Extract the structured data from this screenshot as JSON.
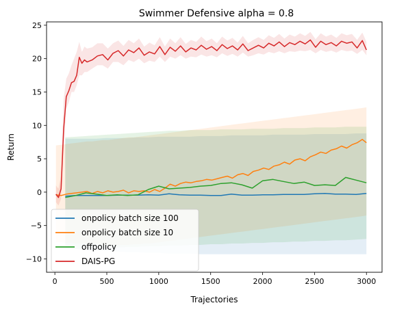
{
  "chart_data": {
    "type": "line",
    "title": "Swimmer Defensive alpha = 0.8",
    "xlabel": "Trajectories",
    "ylabel": "Return",
    "xlim": [
      -80,
      3150
    ],
    "ylim": [
      -12,
      25.5
    ],
    "xticks": [
      0,
      500,
      1000,
      1500,
      2000,
      2500,
      3000
    ],
    "yticks": [
      -10,
      -5,
      0,
      5,
      10,
      15,
      20,
      25
    ],
    "xtick_labels": [
      "0",
      "500",
      "1000",
      "1500",
      "2000",
      "2500",
      "3000"
    ],
    "ytick_labels": [
      "−10",
      "−5",
      "0",
      "5",
      "10",
      "15",
      "20",
      "25"
    ],
    "grid": false,
    "legend_position": "lower-left",
    "series": [
      {
        "name": "onpolicy batch size 100",
        "color": "#1f77b4",
        "x": [
          100,
          200,
          300,
          400,
          500,
          600,
          700,
          800,
          900,
          1000,
          1100,
          1200,
          1300,
          1400,
          1500,
          1600,
          1700,
          1800,
          1900,
          2000,
          2100,
          2200,
          2300,
          2400,
          2500,
          2600,
          2700,
          2800,
          2900,
          3000
        ],
        "y": [
          -0.6,
          -0.5,
          -0.5,
          -0.5,
          -0.5,
          -0.45,
          -0.45,
          -0.45,
          -0.4,
          -0.45,
          -0.25,
          -0.4,
          -0.45,
          -0.45,
          -0.5,
          -0.5,
          -0.3,
          -0.45,
          -0.45,
          -0.4,
          -0.4,
          -0.35,
          -0.35,
          -0.35,
          -0.25,
          -0.2,
          -0.3,
          -0.3,
          -0.35,
          -0.2
        ],
        "band_lower": [
          -8.5,
          -8.5,
          -8.7,
          -8.8,
          -8.8,
          -8.9,
          -9,
          -9,
          -9.1,
          -9.1,
          -9.2,
          -9.2,
          -9.2,
          -9.3,
          -9.3,
          -9.3,
          -9.3,
          -9.3,
          -9.3,
          -9.3,
          -9.3,
          -9.3,
          -9.3,
          -9.3,
          -9.3,
          -9.3,
          -9.3,
          -9.3,
          -9.3,
          -9.3
        ],
        "band_upper": [
          8,
          8,
          8,
          8,
          8.1,
          8.1,
          8.1,
          8.2,
          8.2,
          8.3,
          8.3,
          8.3,
          8.3,
          8.4,
          8.4,
          8.4,
          8.5,
          8.5,
          8.5,
          8.5,
          8.6,
          8.6,
          8.6,
          8.6,
          8.7,
          8.7,
          8.7,
          8.7,
          8.8,
          8.8
        ]
      },
      {
        "name": "onpolicy batch size 10",
        "color": "#ff7f0e",
        "x": [
          10,
          60,
          110,
          160,
          210,
          260,
          310,
          360,
          410,
          460,
          510,
          560,
          610,
          660,
          710,
          760,
          810,
          860,
          910,
          960,
          1010,
          1060,
          1110,
          1160,
          1210,
          1260,
          1310,
          1360,
          1410,
          1460,
          1510,
          1560,
          1610,
          1660,
          1710,
          1760,
          1810,
          1860,
          1910,
          1960,
          2010,
          2060,
          2110,
          2160,
          2210,
          2260,
          2310,
          2360,
          2410,
          2460,
          2510,
          2560,
          2610,
          2660,
          2710,
          2760,
          2810,
          2860,
          2910,
          2960,
          3000
        ],
        "y": [
          -0.4,
          -0.5,
          -0.3,
          -0.2,
          -0.1,
          0,
          0.1,
          -0.2,
          0.1,
          -0.1,
          0.2,
          0,
          0.1,
          0.3,
          -0.1,
          0.2,
          0.1,
          0.2,
          0,
          0.4,
          0.1,
          0.6,
          1.2,
          0.9,
          1.3,
          1.5,
          1.4,
          1.6,
          1.7,
          1.9,
          1.8,
          2.0,
          2.2,
          2.4,
          2.1,
          2.6,
          2.8,
          2.5,
          3.1,
          3.3,
          3.6,
          3.4,
          3.9,
          4.1,
          4.5,
          4.2,
          4.8,
          5.0,
          4.7,
          5.3,
          5.6,
          6.0,
          5.8,
          6.3,
          6.5,
          6.9,
          6.6,
          7.1,
          7.4,
          7.9,
          7.4
        ],
        "band_lower": [
          -7.5,
          -7.5,
          -7.6,
          -7.6,
          -7.7,
          -7.7,
          -7.8,
          -7.8,
          -7.8,
          -7.9,
          -7.9,
          -7.9,
          -7.9,
          -7.9,
          -7.9,
          -7.8,
          -7.8,
          -7.7,
          -7.7,
          -7.6,
          -7.5,
          -7.4,
          -7.3,
          -7.2,
          -7.1,
          -7,
          -6.9,
          -6.8,
          -6.7,
          -6.6,
          -6.5,
          -6.4,
          -6.3,
          -6.2,
          -6.1,
          -6,
          -5.9,
          -5.8,
          -5.7,
          -5.6,
          -5.5,
          -5.4,
          -5.3,
          -5.2,
          -5.1,
          -5,
          -4.9,
          -4.8,
          -4.7,
          -4.6,
          -4.5,
          -4.4,
          -4.3,
          -4.2,
          -4.1,
          -4,
          -3.9,
          -3.8,
          -3.7,
          -3.6,
          -3.5
        ],
        "band_upper": [
          7,
          7.1,
          7.2,
          7.3,
          7.4,
          7.5,
          7.6,
          7.6,
          7.7,
          7.8,
          7.8,
          7.9,
          8,
          8.1,
          8.2,
          8.2,
          8.3,
          8.4,
          8.5,
          8.6,
          8.7,
          8.8,
          8.9,
          9,
          9.1,
          9.2,
          9.3,
          9.4,
          9.5,
          9.6,
          9.7,
          9.8,
          9.9,
          10,
          10.1,
          10.2,
          10.3,
          10.4,
          10.5,
          10.6,
          10.7,
          10.8,
          10.9,
          11,
          11.1,
          11.2,
          11.3,
          11.4,
          11.5,
          11.6,
          11.7,
          11.8,
          11.9,
          12,
          12.1,
          12.2,
          12.3,
          12.4,
          12.5,
          12.6,
          12.7
        ]
      },
      {
        "name": "offpolicy",
        "color": "#2ca02c",
        "x": [
          100,
          200,
          300,
          400,
          500,
          600,
          700,
          800,
          900,
          1000,
          1100,
          1200,
          1300,
          1400,
          1500,
          1600,
          1700,
          1800,
          1900,
          2000,
          2100,
          2200,
          2300,
          2400,
          2500,
          2600,
          2700,
          2800,
          2900,
          3000
        ],
        "y": [
          -0.8,
          -0.5,
          -0.1,
          -0.3,
          -0.5,
          -0.4,
          -0.5,
          -0.4,
          0.4,
          0.9,
          0.5,
          0.6,
          0.7,
          0.9,
          1.0,
          1.3,
          1.4,
          1.1,
          0.6,
          1.7,
          1.9,
          1.6,
          1.3,
          1.5,
          1.0,
          1.1,
          1.0,
          2.2,
          1.8,
          1.4
        ],
        "band_lower": [
          -8.5,
          -8.5,
          -8.4,
          -8.4,
          -8.3,
          -8.3,
          -8.2,
          -8.2,
          -8.1,
          -8.1,
          -8,
          -8,
          -7.9,
          -7.9,
          -7.8,
          -7.8,
          -7.7,
          -7.7,
          -7.6,
          -7.6,
          -7.5,
          -7.5,
          -7.4,
          -7.4,
          -7.3,
          -7.3,
          -7.2,
          -7.2,
          -7.1,
          -7
        ],
        "band_upper": [
          8.2,
          8.3,
          8.4,
          8.5,
          8.6,
          8.7,
          8.8,
          8.9,
          9,
          9.1,
          9.2,
          9.2,
          9.3,
          9.3,
          9.3,
          9.4,
          9.4,
          9.4,
          9.5,
          9.5,
          9.5,
          9.6,
          9.6,
          9.6,
          9.7,
          9.7,
          9.7,
          9.8,
          9.8,
          9.8
        ]
      },
      {
        "name": "DAIS-PG",
        "color": "#d62728",
        "x": [
          10,
          35,
          60,
          85,
          110,
          135,
          160,
          185,
          210,
          235,
          260,
          285,
          310,
          360,
          410,
          460,
          510,
          560,
          610,
          660,
          710,
          760,
          810,
          860,
          910,
          960,
          1010,
          1060,
          1110,
          1160,
          1210,
          1260,
          1310,
          1360,
          1410,
          1460,
          1510,
          1560,
          1610,
          1660,
          1710,
          1760,
          1810,
          1860,
          1910,
          1960,
          2010,
          2060,
          2110,
          2160,
          2210,
          2260,
          2310,
          2360,
          2410,
          2460,
          2510,
          2560,
          2610,
          2660,
          2710,
          2760,
          2810,
          2860,
          2910,
          2960,
          3000
        ],
        "y": [
          -0.3,
          -0.8,
          0.5,
          9.5,
          14.3,
          15.2,
          16.4,
          16.6,
          17.5,
          20.2,
          19.3,
          19.8,
          19.5,
          19.8,
          20.4,
          20.6,
          19.8,
          20.8,
          21.2,
          20.4,
          21.3,
          20.9,
          21.6,
          20.5,
          21.0,
          20.7,
          21.8,
          20.6,
          21.7,
          21.1,
          21.9,
          21.0,
          21.6,
          21.3,
          22.0,
          21.4,
          21.8,
          21.2,
          22.1,
          21.5,
          21.9,
          21.3,
          22.2,
          21.2,
          21.6,
          22.0,
          21.6,
          22.3,
          21.9,
          22.5,
          21.8,
          22.4,
          22.1,
          22.6,
          22.2,
          22.8,
          21.7,
          22.6,
          22.1,
          22.4,
          21.9,
          22.6,
          22.3,
          22.5,
          21.6,
          22.7,
          21.3
        ],
        "band_lower": [
          -1.5,
          -2,
          -1,
          7,
          12.5,
          13.5,
          15,
          15,
          16,
          17.5,
          17.5,
          18,
          18,
          18.5,
          19,
          19,
          18.5,
          19.5,
          19.5,
          19,
          19.8,
          19.5,
          20,
          19.3,
          19.7,
          19.5,
          20.3,
          19.5,
          20.3,
          20,
          20.5,
          20,
          20.3,
          20.2,
          20.6,
          20.3,
          20.5,
          20.2,
          20.8,
          20.4,
          20.7,
          20.3,
          20.9,
          20.3,
          20.5,
          20.8,
          20.6,
          21,
          20.8,
          21.1,
          20.8,
          21.1,
          21,
          21.2,
          21.1,
          21.3,
          20.8,
          21.3,
          21,
          21.2,
          20.9,
          21.3,
          21.1,
          21.2,
          20.7,
          21.3,
          20.5
        ],
        "band_upper": [
          1,
          0.5,
          2.5,
          14,
          17,
          17.8,
          19,
          20,
          21,
          22.5,
          21,
          21.8,
          21.5,
          21.7,
          22.3,
          22.3,
          21.5,
          22.3,
          22.7,
          21.9,
          22.8,
          22.3,
          23,
          21.8,
          22.4,
          22,
          23.2,
          21.8,
          23,
          22.3,
          23.2,
          22.2,
          22.8,
          22.5,
          23.3,
          22.6,
          23,
          22.3,
          23.3,
          22.7,
          23.1,
          22.4,
          23.4,
          22.3,
          22.8,
          23.2,
          22.8,
          23.5,
          23.1,
          23.7,
          23,
          23.6,
          23.3,
          23.8,
          23.4,
          24,
          22.9,
          23.8,
          23.3,
          23.6,
          23.1,
          23.8,
          23.5,
          23.7,
          22.8,
          23.9,
          22.5
        ]
      }
    ]
  }
}
